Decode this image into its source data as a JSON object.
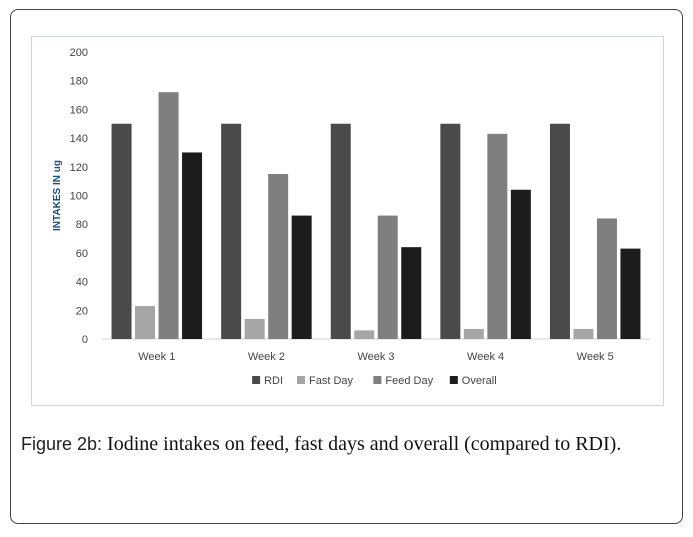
{
  "figure": {
    "caption_lead": "Figure 2b:",
    "caption_text": " Iodine intakes on feed, fast days and overall (compared to RDI)."
  },
  "chart_data": {
    "type": "bar",
    "categories": [
      "Week 1",
      "Week 2",
      "Week 3",
      "Week 4",
      "Week 5"
    ],
    "series": [
      {
        "name": "RDI",
        "color": "#4a4a4a",
        "values": [
          150,
          150,
          150,
          150,
          150
        ]
      },
      {
        "name": "Fast Day",
        "color": "#a6a6a6",
        "values": [
          23,
          14,
          6,
          7,
          7
        ]
      },
      {
        "name": "Feed Day",
        "color": "#7f7f7f",
        "values": [
          172,
          115,
          86,
          143,
          84
        ]
      },
      {
        "name": "Overall",
        "color": "#1c1c1c",
        "values": [
          130,
          86,
          64,
          104,
          63
        ]
      }
    ],
    "ylabel": "INTAKES IN ug",
    "xlabel": "",
    "ylim": [
      0,
      200
    ],
    "yticks": [
      0,
      20,
      40,
      60,
      80,
      100,
      120,
      140,
      160,
      180,
      200
    ],
    "legend_position": "bottom",
    "grid": false
  }
}
